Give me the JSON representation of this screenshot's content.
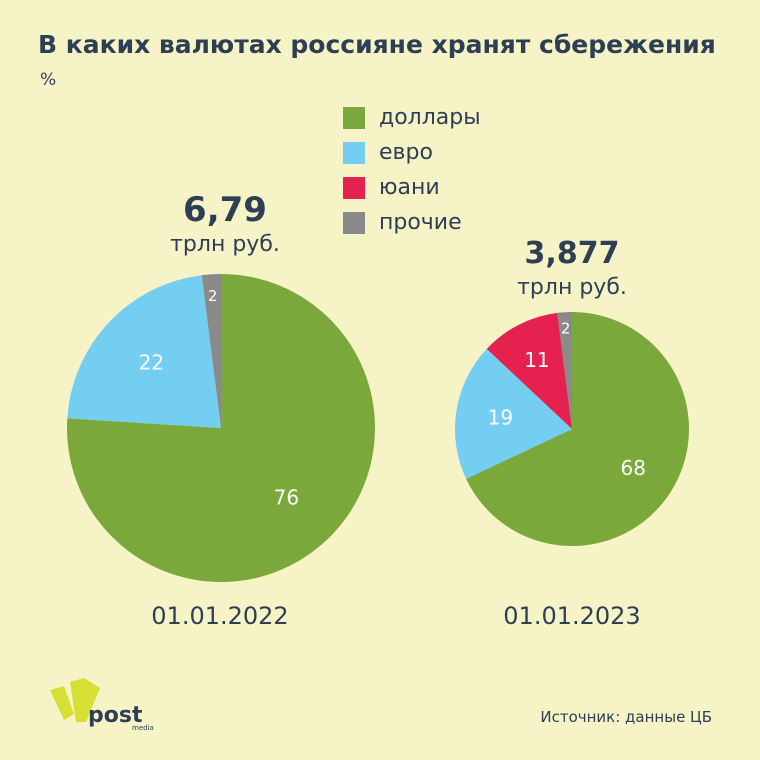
{
  "title": "В каких валютах россияне хранят сбережения",
  "unit": "%",
  "legend": [
    {
      "label": "доллары",
      "color": "#7aa83b"
    },
    {
      "label": "евро",
      "color": "#74cef2"
    },
    {
      "label": "юани",
      "color": "#e5214f"
    },
    {
      "label": "прочие",
      "color": "#8a8a8a"
    }
  ],
  "chart_data": [
    {
      "type": "pie",
      "date": "01.01.2022",
      "total_value": "6,79",
      "total_unit": "трлн руб.",
      "slices": [
        {
          "category": "доллары",
          "value": 76,
          "color": "#7aa83b"
        },
        {
          "category": "евро",
          "value": 22,
          "color": "#74cef2"
        },
        {
          "category": "прочие",
          "value": 2,
          "color": "#8a8a8a"
        }
      ]
    },
    {
      "type": "pie",
      "date": "01.01.2023",
      "total_value": "3,877",
      "total_unit": "трлн руб.",
      "slices": [
        {
          "category": "доллары",
          "value": 68,
          "color": "#7aa83b"
        },
        {
          "category": "евро",
          "value": 19,
          "color": "#74cef2"
        },
        {
          "category": "юани",
          "value": 11,
          "color": "#e5214f"
        },
        {
          "category": "прочие",
          "value": 2,
          "color": "#8a8a8a"
        }
      ]
    }
  ],
  "logo": {
    "text": "post",
    "subtext": "media",
    "color": "#d6e033"
  },
  "source": "Источник: данные ЦБ"
}
